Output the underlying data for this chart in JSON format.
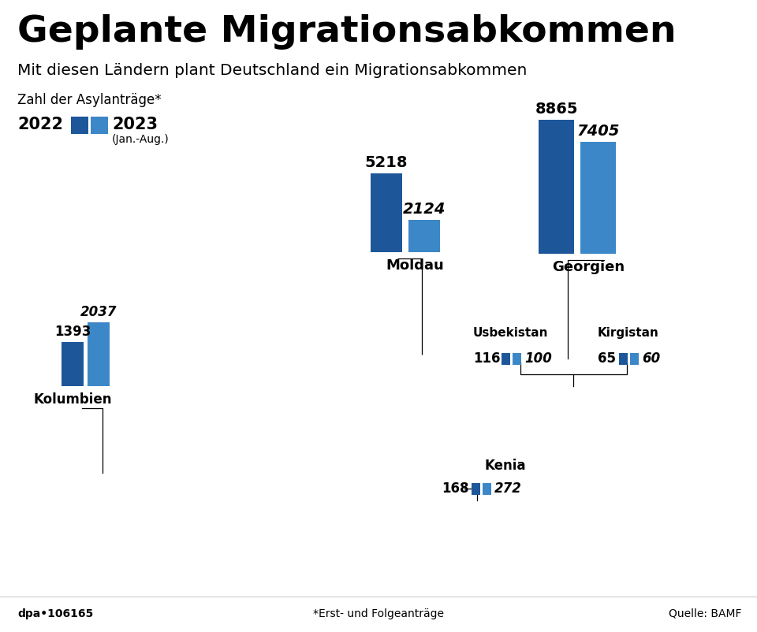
{
  "title": "Geplante Migrationsabkommen",
  "subtitle": "Mit diesen Ländern plant Deutschland ein Migrationsabkommen",
  "legend_label": "Zahl der Asylanträge*",
  "year2022": "2022",
  "year2023": "2023",
  "year2023_sub": "(Jan.-Aug.)",
  "color_2022": "#1d5799",
  "color_2023": "#3c87c8",
  "color_land": "#d8d8d8",
  "color_land_edge": "#b8b8b8",
  "color_highlight": "#f5c07a",
  "color_bg": "#eaeaea",
  "footer_left": "dpa•106165",
  "footer_center": "*Erst- und Folgeanträge",
  "footer_right": "Quelle: BAMF",
  "countries": [
    {
      "name": "Moldau",
      "val2022": 5218,
      "val2023": 2124
    },
    {
      "name": "Georgien",
      "val2022": 8865,
      "val2023": 7405
    },
    {
      "name": "Kolumbien",
      "val2022": 1393,
      "val2023": 2037
    },
    {
      "name": "Usbekistan",
      "val2022": 116,
      "val2023": 100
    },
    {
      "name": "Kirgistan",
      "val2022": 65,
      "val2023": 60
    },
    {
      "name": "Kenia",
      "val2022": 168,
      "val2023": 272
    }
  ]
}
